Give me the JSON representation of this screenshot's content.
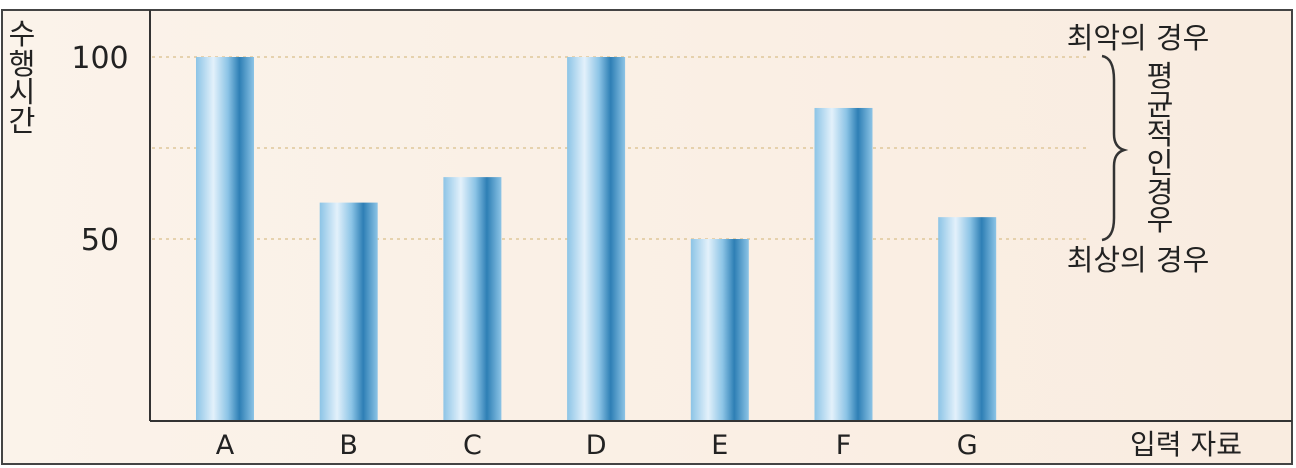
{
  "chart_data": {
    "type": "bar",
    "categories": [
      "A",
      "B",
      "C",
      "D",
      "E",
      "F",
      "G"
    ],
    "values": [
      100,
      60,
      67,
      100,
      50,
      86,
      56
    ],
    "ylabel": [
      "수",
      "행",
      "시",
      "간"
    ],
    "xlabel": "입력 자료",
    "yticks": [
      50,
      100
    ],
    "ylim": [
      0,
      100
    ],
    "grid": true,
    "annotations": {
      "worst": "최악의 경우",
      "average": [
        "평",
        "균",
        "적",
        "인",
        "경",
        "우"
      ],
      "best": "최상의 경우"
    },
    "colors": {
      "bar_light": "#e3f1fb",
      "bar_mid": "#8cc4e6",
      "bar_dark": "#2e7fb5",
      "background": "#fbf3ea",
      "background_right": "#f9ece0",
      "grid": "#e0c79a",
      "axis": "#333333",
      "text": "#222222"
    }
  }
}
